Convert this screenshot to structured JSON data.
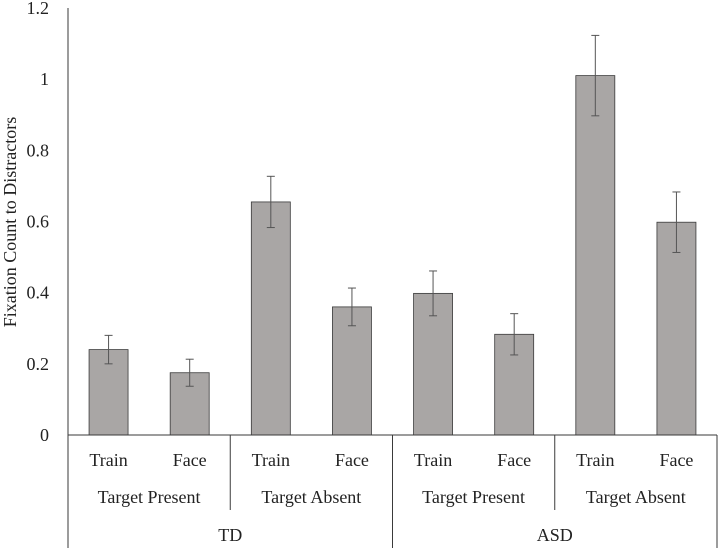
{
  "colors": {
    "bar_fill": "#a9a6a5",
    "bar_stroke": "#3a3a3a",
    "axis": "#3a3a3a",
    "error": "#555555"
  },
  "chart_data": {
    "type": "bar",
    "title": "",
    "xlabel": "",
    "ylabel": "Fixation Count to Distractors",
    "ylim": [
      0,
      1.2
    ],
    "yticks": [
      0,
      0.2,
      0.4,
      0.6,
      0.8,
      1,
      1.2
    ],
    "ytick_labels": [
      "0",
      "0.2",
      "0.4",
      "0.6",
      "0.8",
      "1",
      "1.2"
    ],
    "grid": false,
    "legend": "none",
    "categories": [
      "Train",
      "Face",
      "Train",
      "Face",
      "Train",
      "Face",
      "Train",
      "Face"
    ],
    "values": [
      0.24,
      0.175,
      0.655,
      0.36,
      0.398,
      0.283,
      1.01,
      0.598
    ],
    "errors": [
      0.04,
      0.038,
      0.072,
      0.053,
      0.063,
      0.058,
      0.113,
      0.085
    ],
    "conditions": [
      {
        "label": "Target Present",
        "span": [
          0,
          1
        ]
      },
      {
        "label": "Target Absent",
        "span": [
          2,
          3
        ]
      },
      {
        "label": "Target Present",
        "span": [
          4,
          5
        ]
      },
      {
        "label": "Target Absent",
        "span": [
          6,
          7
        ]
      }
    ],
    "groups": [
      {
        "label": "TD",
        "span": [
          0,
          3
        ]
      },
      {
        "label": "ASD",
        "span": [
          4,
          7
        ]
      }
    ]
  }
}
